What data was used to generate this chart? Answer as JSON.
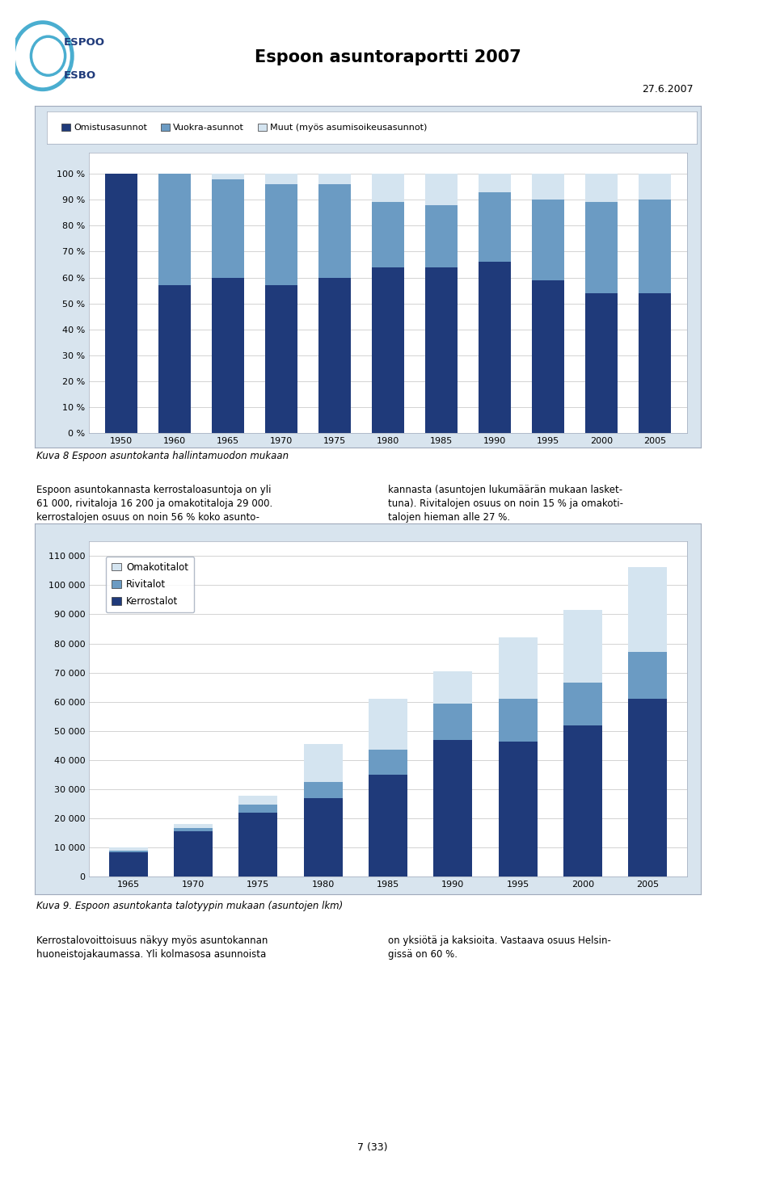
{
  "title": "Espoon asuntoraportti 2007",
  "date": "27.6.2007",
  "page": "7 (33)",
  "chart1": {
    "categories": [
      "1950",
      "1960",
      "1965",
      "1970",
      "1975",
      "1980",
      "1985",
      "1990",
      "1995",
      "2000",
      "2005"
    ],
    "omistus": [
      100,
      57,
      60,
      57,
      60,
      64,
      64,
      66,
      59,
      54,
      54
    ],
    "vuokra": [
      0,
      43,
      38,
      39,
      36,
      25,
      24,
      27,
      31,
      35,
      36
    ],
    "muut": [
      0,
      0,
      2,
      4,
      4,
      11,
      12,
      7,
      10,
      11,
      10
    ],
    "colors": {
      "omistus": "#1F3A7A",
      "vuokra": "#6B9BC3",
      "muut": "#D4E4F0"
    },
    "legend": [
      "Omistusasunnot",
      "Vuokra-asunnot",
      "Muut (myös asumisoikeusasunnot)"
    ],
    "caption": "Kuva 8 Espoon asuntokanta hallintamuodon mukaan"
  },
  "text_left": "Espoon asuntokannasta kerrostaloasuntoja on yli\n61 000, rivitaloja 16 200 ja omakotitaloja 29 000.\nkerrostalojen osuus on noin 56 % koko asunto-",
  "text_right": "kannasta (asuntojen lukumäärän mukaan lasket-\ntuna). Rivitalojen osuus on noin 15 % ja omakoti-\ntalojen hieman alle 27 %.",
  "chart2": {
    "categories": [
      "1965",
      "1970",
      "1975",
      "1980",
      "1985",
      "1990",
      "1995",
      "2000",
      "2005"
    ],
    "kerrostalot": [
      8500,
      15500,
      22000,
      27000,
      35000,
      47000,
      46500,
      52000,
      61000
    ],
    "rivitalot": [
      500,
      1200,
      2800,
      5500,
      8500,
      12500,
      14500,
      14500,
      16200
    ],
    "omakotitalot": [
      1000,
      1500,
      3000,
      13000,
      17500,
      11000,
      21000,
      25000,
      29000
    ],
    "colors": {
      "kerrostalot": "#1F3A7A",
      "rivitalot": "#6B9BC3",
      "omakotitalot": "#D4E4F0"
    },
    "legend": [
      "Omakotitalot",
      "Rivitalot",
      "Kerrostalot"
    ],
    "caption": "Kuva 9. Espoon asuntokanta talotyypin mukaan (asuntojen lkm)"
  },
  "text2_left": "Kerrostalovoittoisuus näkyy myös asuntokannan\nhuoneistojakaumassa. Yli kolmasosa asunnoista",
  "text2_right": "on yksiötä ja kaksioita. Vastaava osuus Helsin-\ngissä on 60 %.",
  "outer_bg": "#D8E4EE",
  "chart_bg": "#FFFFFF",
  "legend_bg": "#FFFFFF"
}
